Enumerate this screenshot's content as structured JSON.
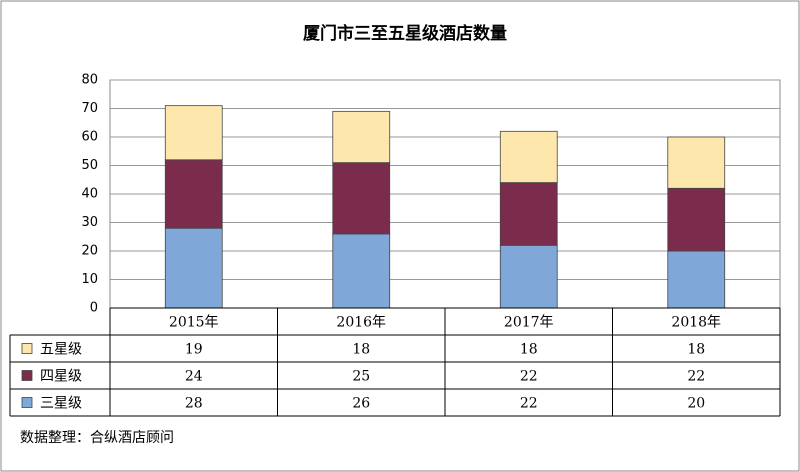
{
  "chart_data": {
    "type": "bar",
    "stacked": true,
    "title": "厦门市三至五星级酒店数量",
    "categories": [
      "2015年",
      "2016年",
      "2017年",
      "2018年"
    ],
    "series": [
      {
        "name": "三星级",
        "color": "#7fa8d8",
        "values": [
          28,
          26,
          22,
          20
        ]
      },
      {
        "name": "四星级",
        "color": "#7b2c4c",
        "values": [
          24,
          25,
          22,
          22
        ]
      },
      {
        "name": "五星级",
        "color": "#fde7ad",
        "values": [
          19,
          18,
          18,
          18
        ]
      }
    ],
    "ylim": [
      0,
      80
    ],
    "yticks": [
      0,
      10,
      20,
      30,
      40,
      50,
      60,
      70,
      80
    ],
    "grid": true,
    "source": "数据整理：合纵酒店顾问"
  }
}
